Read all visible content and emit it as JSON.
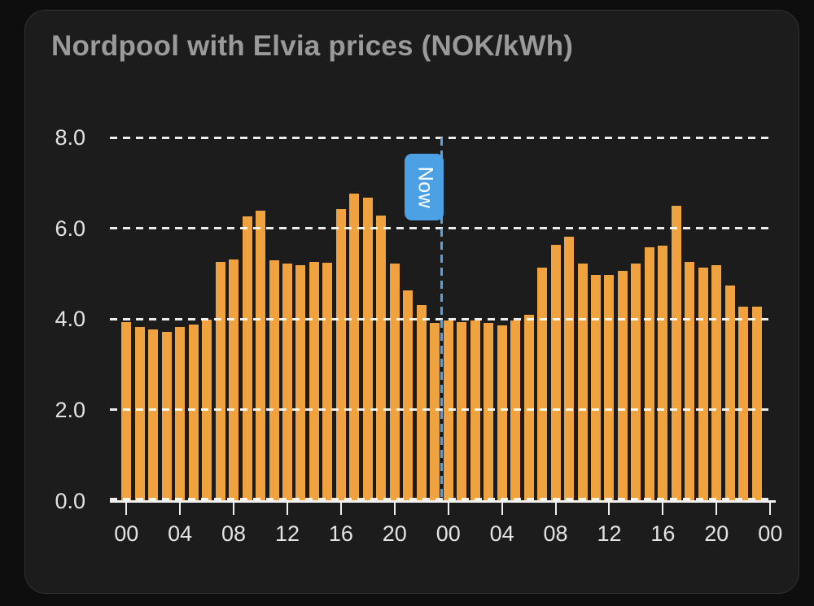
{
  "card": {
    "title": "Nordpool with Elvia prices (NOK/kWh)"
  },
  "colors": {
    "page_bg": "#0e0e0e",
    "card_bg": "#1c1c1c",
    "card_border": "#313131",
    "title": "#9a9a9a",
    "bar": "#f0a23e",
    "grid": "rgba(255,255,255,0.92)",
    "axis": "#f0f0f0",
    "tick_label": "#e3e3e3",
    "now_line": "#5ba0dd",
    "now_badge_bg": "#4ba1e4",
    "now_badge_text": "#ffffff"
  },
  "chart_data": {
    "type": "bar",
    "title": "Nordpool with Elvia prices (NOK/kWh)",
    "unit": "NOK/kWh",
    "x_unit": "hour, 48 hourly bars over 2 days",
    "values": [
      3.93,
      3.82,
      3.78,
      3.72,
      3.83,
      3.88,
      3.98,
      5.25,
      5.31,
      6.27,
      6.39,
      5.29,
      5.23,
      5.19,
      5.25,
      5.24,
      6.43,
      6.77,
      6.67,
      6.28,
      5.23,
      4.64,
      4.31,
      3.92,
      3.97,
      3.94,
      3.96,
      3.91,
      3.86,
      3.97,
      4.1,
      5.13,
      5.63,
      5.82,
      5.22,
      4.98,
      4.97,
      5.07,
      5.22,
      5.59,
      5.61,
      6.49,
      5.25,
      5.14,
      5.19,
      4.74,
      4.28,
      4.28
    ],
    "x_tick_hours": [
      0,
      4,
      8,
      12,
      16,
      20,
      24,
      28,
      32,
      36,
      40,
      44,
      48
    ],
    "x_tick_labels": [
      "00",
      "04",
      "08",
      "12",
      "16",
      "20",
      "00",
      "04",
      "08",
      "12",
      "16",
      "20",
      "00"
    ],
    "y_ticks": [
      0,
      2,
      4,
      6,
      8
    ],
    "y_tick_labels": [
      "0.0",
      "2.0",
      "4.0",
      "6.0",
      "8.0"
    ],
    "ylim": [
      0,
      8
    ],
    "grid": "horizontal dashed lines drawn over bars",
    "legend": "none",
    "annotations": [
      {
        "type": "vline",
        "label": "Now",
        "at_hour": 24
      }
    ]
  }
}
